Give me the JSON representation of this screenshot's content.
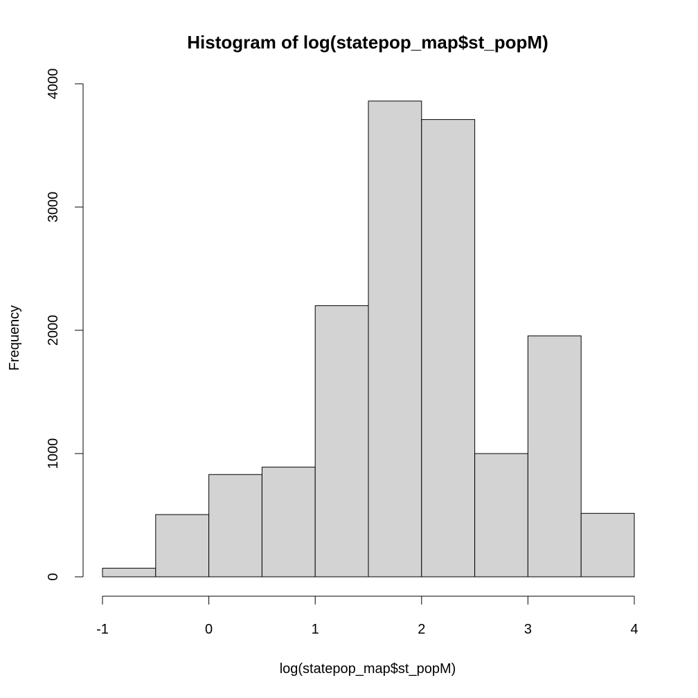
{
  "chart_data": {
    "type": "bar",
    "title": "Histogram of log(statepop_map$st_popM)",
    "xlabel": "log(statepop_map$st_popM)",
    "ylabel": "Frequency",
    "bins": [
      {
        "x0": -1.0,
        "x1": -0.5,
        "count": 70
      },
      {
        "x0": -0.5,
        "x1": 0.0,
        "count": 505
      },
      {
        "x0": 0.0,
        "x1": 0.5,
        "count": 830
      },
      {
        "x0": 0.5,
        "x1": 1.0,
        "count": 890
      },
      {
        "x0": 1.0,
        "x1": 1.5,
        "count": 2200
      },
      {
        "x0": 1.5,
        "x1": 2.0,
        "count": 3860
      },
      {
        "x0": 2.0,
        "x1": 2.5,
        "count": 3710
      },
      {
        "x0": 2.5,
        "x1": 3.0,
        "count": 1000
      },
      {
        "x0": 3.0,
        "x1": 3.5,
        "count": 1955
      },
      {
        "x0": 3.5,
        "x1": 4.0,
        "count": 515
      }
    ],
    "xlim": [
      -1,
      4
    ],
    "ylim": [
      0,
      4000
    ],
    "x_ticks": [
      "-1",
      "0",
      "1",
      "2",
      "3",
      "4"
    ],
    "y_ticks": [
      "0",
      "1000",
      "2000",
      "3000",
      "4000"
    ],
    "bar_color": "#d3d3d3",
    "grid": false,
    "legend": "none"
  }
}
